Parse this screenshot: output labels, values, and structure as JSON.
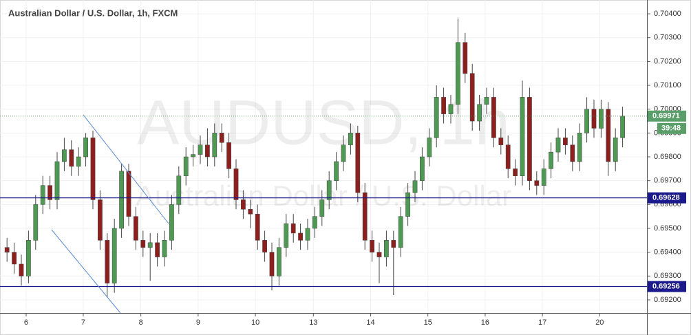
{
  "chart_data": {
    "type": "candlestick",
    "title": "Australian Dollar / U.S. Dollar, 1h, FXCM",
    "watermark": [
      "AUDUSD, 1h",
      "Australian Dollar / U.S. Dollar"
    ],
    "up_color": "#4e9a52",
    "down_color": "#8e1f1f",
    "wick_color": "#444444",
    "grid": true,
    "xlim": [
      0,
      90
    ],
    "xticks": [
      {
        "value": 3.17,
        "label": "6"
      },
      {
        "value": 11.15,
        "label": "7"
      },
      {
        "value": 19.2,
        "label": "8"
      },
      {
        "value": 27.2,
        "label": "9"
      },
      {
        "value": 35.2,
        "label": "10"
      },
      {
        "value": 43.3,
        "label": "13"
      },
      {
        "value": 51.3,
        "label": "14"
      },
      {
        "value": 59.3,
        "label": "15"
      },
      {
        "value": 67.3,
        "label": "16"
      },
      {
        "value": 75.3,
        "label": "17"
      },
      {
        "value": 83.3,
        "label": "20"
      }
    ],
    "ylim": [
      0.69145,
      0.70458
    ],
    "yticks": [
      {
        "value": 0.692,
        "label": "0.69200"
      },
      {
        "value": 0.693,
        "label": "0.69300"
      },
      {
        "value": 0.694,
        "label": "0.69400"
      },
      {
        "value": 0.695,
        "label": "0.69500"
      },
      {
        "value": 0.696,
        "label": "0.69600"
      },
      {
        "value": 0.697,
        "label": "0.69700"
      },
      {
        "value": 0.698,
        "label": "0.69800"
      },
      {
        "value": 0.699,
        "label": "0.69900"
      },
      {
        "value": 0.7,
        "label": "0.70000"
      },
      {
        "value": 0.701,
        "label": "0.70100"
      },
      {
        "value": 0.702,
        "label": "0.70200"
      },
      {
        "value": 0.703,
        "label": "0.70300"
      },
      {
        "value": 0.704,
        "label": "0.70400"
      }
    ],
    "price_lines": [
      {
        "value": 0.69628,
        "label": "0.69628"
      },
      {
        "value": 0.69256,
        "label": "0.69256"
      }
    ],
    "price_line_color": "#1a1a8c",
    "last_price": {
      "value": 0.69971,
      "label": "0.69971"
    },
    "last_price_color": "#5a9e6a",
    "countdown": "39:48",
    "open": [
      0.6942,
      0.694,
      0.6935,
      0.693,
      0.6945,
      0.696,
      0.6968,
      0.6962,
      0.6978,
      0.6983,
      0.6976,
      0.698,
      0.6988,
      0.6962,
      0.6945,
      0.6927,
      0.695,
      0.6974,
      0.6955,
      0.6945,
      0.6942,
      0.6944,
      0.6938,
      0.6945,
      0.696,
      0.6972,
      0.698,
      0.6981,
      0.6985,
      0.698,
      0.699,
      0.6986,
      0.6975,
      0.6962,
      0.6958,
      0.6956,
      0.6945,
      0.694,
      0.693,
      0.6942,
      0.6952,
      0.6948,
      0.6945,
      0.695,
      0.6955,
      0.6962,
      0.697,
      0.6978,
      0.6985,
      0.699,
      0.6965,
      0.6945,
      0.694,
      0.6938,
      0.6945,
      0.6942,
      0.6955,
      0.6965,
      0.697,
      0.698,
      0.6988,
      0.7005,
      0.6998,
      0.7002,
      0.7028,
      0.7015,
      0.6995,
      0.7002,
      0.7005,
      0.6988,
      0.6985,
      0.6975,
      0.6972,
      0.7005,
      0.697,
      0.6968,
      0.6975,
      0.6982,
      0.6988,
      0.6985,
      0.6978,
      0.699,
      0.7,
      0.6992,
      0.7,
      0.6978,
      0.6988
    ],
    "high": [
      0.6946,
      0.6944,
      0.6939,
      0.6949,
      0.6964,
      0.6972,
      0.6972,
      0.6982,
      0.6988,
      0.6987,
      0.6984,
      0.699,
      0.6991,
      0.6966,
      0.6948,
      0.6954,
      0.6977,
      0.6977,
      0.6959,
      0.6949,
      0.6948,
      0.6948,
      0.6949,
      0.6964,
      0.6976,
      0.6984,
      0.6985,
      0.6989,
      0.6992,
      0.6994,
      0.6994,
      0.699,
      0.6979,
      0.6966,
      0.6962,
      0.696,
      0.6949,
      0.6944,
      0.6946,
      0.6956,
      0.6956,
      0.6952,
      0.6954,
      0.6959,
      0.6966,
      0.6974,
      0.6982,
      0.6989,
      0.6994,
      0.6993,
      0.6969,
      0.6949,
      0.6944,
      0.6949,
      0.6949,
      0.6959,
      0.6969,
      0.6974,
      0.6984,
      0.6992,
      0.701,
      0.7009,
      0.7006,
      0.7038,
      0.7032,
      0.7019,
      0.7006,
      0.7009,
      0.7009,
      0.6992,
      0.6989,
      0.6979,
      0.7012,
      0.7009,
      0.6974,
      0.6979,
      0.6986,
      0.6992,
      0.6992,
      0.6989,
      0.6994,
      0.7005,
      0.7004,
      0.7004,
      0.7003,
      0.6992,
      0.7001
    ],
    "low": [
      0.6936,
      0.6931,
      0.6926,
      0.6927,
      0.6941,
      0.6956,
      0.6958,
      0.6958,
      0.6974,
      0.6972,
      0.6972,
      0.6976,
      0.6958,
      0.6941,
      0.6921,
      0.6923,
      0.6946,
      0.6951,
      0.6941,
      0.6938,
      0.6928,
      0.6934,
      0.6934,
      0.6941,
      0.6956,
      0.6968,
      0.6976,
      0.6977,
      0.6976,
      0.6976,
      0.6982,
      0.6971,
      0.6958,
      0.6954,
      0.695,
      0.6941,
      0.6936,
      0.6924,
      0.6926,
      0.6938,
      0.6944,
      0.6941,
      0.6941,
      0.6946,
      0.6951,
      0.6958,
      0.6966,
      0.6974,
      0.6981,
      0.6961,
      0.6941,
      0.6936,
      0.6927,
      0.6934,
      0.6922,
      0.6938,
      0.6951,
      0.6961,
      0.6966,
      0.6976,
      0.6984,
      0.6994,
      0.6994,
      0.6998,
      0.7011,
      0.6991,
      0.6991,
      0.6998,
      0.6984,
      0.6981,
      0.6971,
      0.6968,
      0.6968,
      0.6966,
      0.6964,
      0.6964,
      0.6971,
      0.6978,
      0.6981,
      0.6974,
      0.6974,
      0.6986,
      0.6988,
      0.6988,
      0.6972,
      0.6974,
      0.6984
    ],
    "close": [
      0.694,
      0.6935,
      0.693,
      0.6945,
      0.696,
      0.6968,
      0.6962,
      0.6978,
      0.6983,
      0.6976,
      0.698,
      0.6988,
      0.6962,
      0.6945,
      0.6927,
      0.695,
      0.6974,
      0.6955,
      0.6945,
      0.6942,
      0.6944,
      0.6938,
      0.6945,
      0.696,
      0.6972,
      0.698,
      0.6981,
      0.6985,
      0.698,
      0.699,
      0.6986,
      0.6975,
      0.6962,
      0.6958,
      0.6956,
      0.6945,
      0.694,
      0.693,
      0.6942,
      0.6952,
      0.6948,
      0.6945,
      0.695,
      0.6955,
      0.6962,
      0.697,
      0.6978,
      0.6985,
      0.699,
      0.6965,
      0.6945,
      0.694,
      0.6938,
      0.6945,
      0.6942,
      0.6955,
      0.6965,
      0.697,
      0.698,
      0.6988,
      0.7005,
      0.6998,
      0.7002,
      0.7028,
      0.7015,
      0.6995,
      0.7002,
      0.7005,
      0.6988,
      0.6985,
      0.6975,
      0.6972,
      0.7005,
      0.697,
      0.6968,
      0.6975,
      0.6982,
      0.6988,
      0.6985,
      0.6978,
      0.699,
      0.7,
      0.6992,
      0.7,
      0.6978,
      0.6988,
      0.69971
    ]
  }
}
